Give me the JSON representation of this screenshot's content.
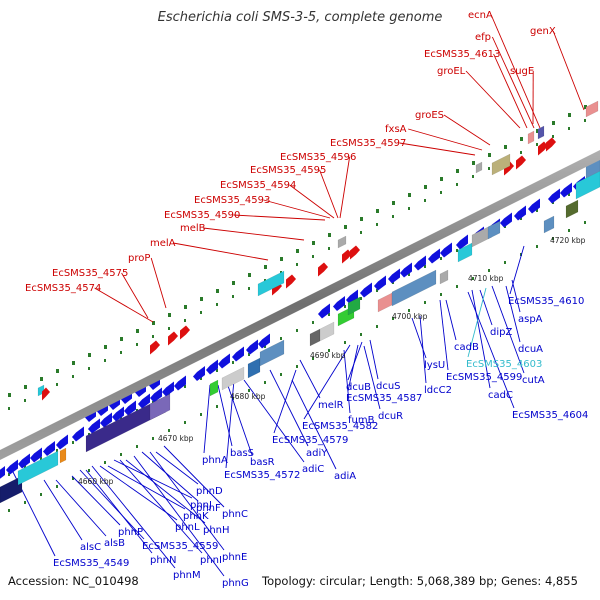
{
  "title": "Escherichia coli SMS-3-5, complete genome",
  "accession": "Accession: NC_010498",
  "summary": "Topology: circular; Length: 5,068,389 bp; Genes: 4,855",
  "colors": {
    "forward_label": "#cc0000",
    "reverse_label": "#0000cc",
    "highlight_label": "#33bbcc",
    "backbone": "#7a7a7a",
    "tick": "#2a7a2a"
  },
  "scale_labels": [
    "4660 kbp",
    "4670 kbp",
    "4680 kbp",
    "4690 kbp",
    "4700 kbp",
    "4710 kbp",
    "4720 kbp"
  ],
  "forward_genes": [
    "EcSMS35_4574",
    "EcSMS35_4575",
    "proP",
    "melA",
    "melB",
    "EcSMS35_4590",
    "EcSMS35_4593",
    "EcSMS35_4594",
    "EcSMS35_4595",
    "EcSMS35_4596",
    "EcSMS35_4597",
    "fxsA",
    "groES",
    "groEL",
    "EcSMS35_4613",
    "efp",
    "ecnA",
    "sugE",
    "genX"
  ],
  "reverse_genes": [
    "EcSMS35_4549",
    "alsC",
    "alsB",
    "phnP",
    "EcSMS35_4559",
    "phnN",
    "phnM",
    "phnL",
    "phnK",
    "phnJ",
    "phnI",
    "phnH",
    "phnG",
    "phnF",
    "phnE",
    "phnD",
    "phnC",
    "phnA",
    "basS",
    "basR",
    "EcSMS35_4572",
    "adiC",
    "adiY",
    "EcSMS35_4579",
    "EcSMS35_4582",
    "adiA",
    "melR",
    "fumB",
    "EcSMS35_4587",
    "dcuB",
    "dcuS",
    "dcuR",
    "lysU",
    "ldcC2",
    "EcSMS35_4599",
    "cadB",
    "cadC",
    "dipZ",
    "EcSMS35_4603",
    "cutA",
    "dcuA",
    "aspA",
    "EcSMS35_4604",
    "EcSMS35_4610"
  ],
  "highlighted_gene": "EcSMS35_4603"
}
